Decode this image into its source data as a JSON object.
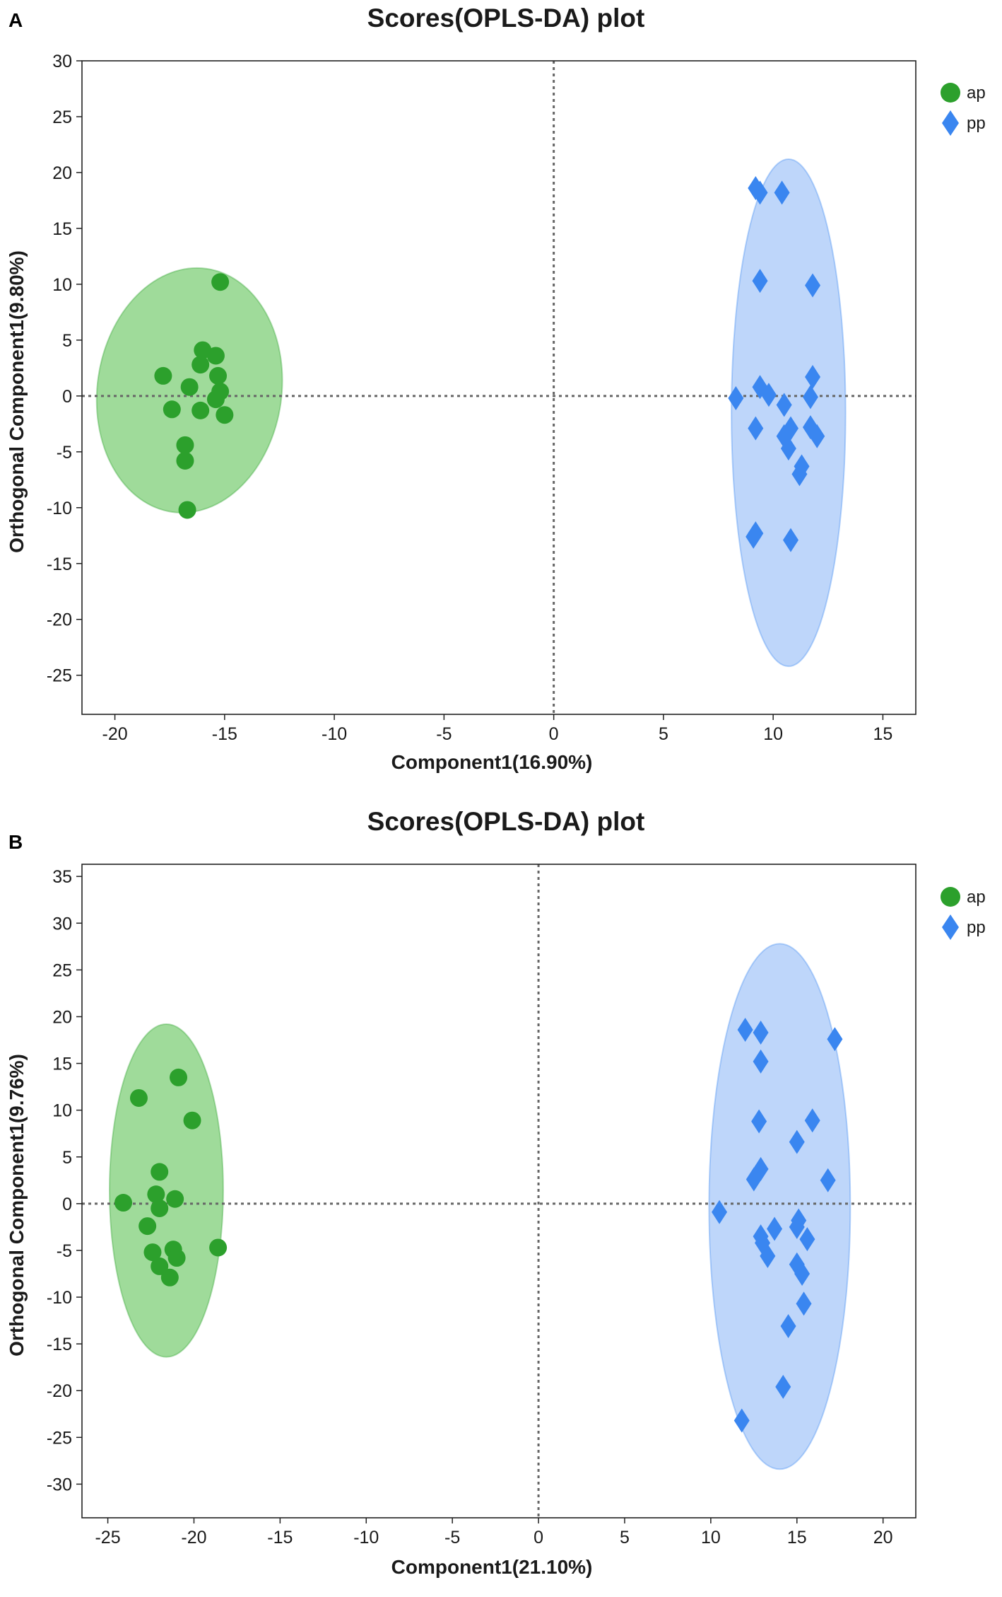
{
  "chart_data": [
    {
      "panel": "A",
      "type": "scatter",
      "title": "Scores(OPLS-DA) plot",
      "xlabel": "Component1(16.90%)",
      "ylabel": "Orthogonal Component1(9.80%)",
      "xlim": [
        -21.5,
        16.5
      ],
      "ylim": [
        -28.5,
        30
      ],
      "xticks": [
        -20,
        -15,
        -10,
        -5,
        0,
        5,
        10,
        15
      ],
      "yticks": [
        30,
        25,
        20,
        15,
        10,
        5,
        0,
        -5,
        -10,
        -15,
        -20,
        -25
      ],
      "reference_lines": {
        "x": 0,
        "y": 0
      },
      "legend": {
        "position": "top-right",
        "entries": [
          "ap",
          "pp"
        ]
      },
      "series": [
        {
          "name": "ap",
          "marker": "circle",
          "color": "#2ca02c",
          "ellipse": {
            "cx": -16.6,
            "cy": 0.5,
            "rx": 4.2,
            "ry": 11.0,
            "rotation_deg": 8,
            "fill": "#7fcf78"
          },
          "points": [
            [
              -15.2,
              10.2
            ],
            [
              -16.0,
              4.1
            ],
            [
              -15.4,
              3.6
            ],
            [
              -16.1,
              2.8
            ],
            [
              -17.8,
              1.8
            ],
            [
              -15.3,
              1.8
            ],
            [
              -16.6,
              0.8
            ],
            [
              -15.2,
              0.4
            ],
            [
              -15.4,
              -0.3
            ],
            [
              -17.4,
              -1.2
            ],
            [
              -16.1,
              -1.3
            ],
            [
              -15.0,
              -1.7
            ],
            [
              -16.8,
              -4.4
            ],
            [
              -16.8,
              -5.8
            ],
            [
              -16.7,
              -10.2
            ]
          ]
        },
        {
          "name": "pp",
          "marker": "diamond",
          "color": "#3a86f0",
          "ellipse": {
            "cx": 10.7,
            "cy": -1.5,
            "rx": 2.6,
            "ry": 22.7,
            "rotation_deg": 0,
            "fill": "#a8c8f8"
          },
          "points": [
            [
              9.2,
              18.6
            ],
            [
              9.4,
              18.2
            ],
            [
              10.4,
              18.2
            ],
            [
              9.4,
              10.3
            ],
            [
              11.8,
              9.9
            ],
            [
              11.8,
              1.7
            ],
            [
              9.4,
              0.8
            ],
            [
              11.7,
              -0.1
            ],
            [
              8.3,
              -0.2
            ],
            [
              9.8,
              0.1
            ],
            [
              10.5,
              -0.8
            ],
            [
              10.8,
              -2.9
            ],
            [
              11.7,
              -2.8
            ],
            [
              9.2,
              -2.9
            ],
            [
              10.5,
              -3.6
            ],
            [
              12.0,
              -3.6
            ],
            [
              10.7,
              -4.7
            ],
            [
              11.3,
              -6.3
            ],
            [
              11.2,
              -7.0
            ],
            [
              9.1,
              -12.6
            ],
            [
              9.2,
              -12.3
            ],
            [
              10.8,
              -12.9
            ]
          ]
        }
      ]
    },
    {
      "panel": "B",
      "type": "scatter",
      "title": "Scores(OPLS-DA) plot",
      "xlabel": "Component1(21.10%)",
      "ylabel": "Orthogonal Component1(9.76%)",
      "xlim": [
        -26.5,
        21.9
      ],
      "ylim": [
        -33.6,
        36.3
      ],
      "xticks": [
        -25,
        -20,
        -15,
        -10,
        -5,
        0,
        5,
        10,
        15,
        20
      ],
      "yticks": [
        35,
        30,
        25,
        20,
        15,
        10,
        5,
        0,
        -5,
        -10,
        -15,
        -20,
        -25,
        -30
      ],
      "reference_lines": {
        "x": 0,
        "y": 0
      },
      "legend": {
        "position": "top-right",
        "entries": [
          "ap",
          "pp"
        ]
      },
      "series": [
        {
          "name": "ap",
          "marker": "circle",
          "color": "#2ca02c",
          "ellipse": {
            "cx": -21.6,
            "cy": 1.4,
            "rx": 3.3,
            "ry": 17.8,
            "rotation_deg": 0,
            "fill": "#7fcf78"
          },
          "points": [
            [
              -20.9,
              13.5
            ],
            [
              -23.2,
              11.3
            ],
            [
              -20.1,
              8.9
            ],
            [
              -22.0,
              3.4
            ],
            [
              -22.2,
              1.0
            ],
            [
              -21.1,
              0.5
            ],
            [
              -24.1,
              0.1
            ],
            [
              -22.0,
              -0.5
            ],
            [
              -22.7,
              -2.4
            ],
            [
              -18.6,
              -4.7
            ],
            [
              -21.2,
              -4.9
            ],
            [
              -22.4,
              -5.2
            ],
            [
              -21.0,
              -5.8
            ],
            [
              -22.0,
              -6.7
            ],
            [
              -21.4,
              -7.9
            ]
          ]
        },
        {
          "name": "pp",
          "marker": "diamond",
          "color": "#3a86f0",
          "ellipse": {
            "cx": 14.0,
            "cy": -0.3,
            "rx": 4.1,
            "ry": 28.1,
            "rotation_deg": 0,
            "fill": "#a8c8f8"
          },
          "points": [
            [
              12.0,
              18.6
            ],
            [
              12.9,
              18.3
            ],
            [
              17.2,
              17.6
            ],
            [
              12.9,
              15.2
            ],
            [
              12.8,
              8.8
            ],
            [
              15.9,
              8.9
            ],
            [
              15.0,
              6.6
            ],
            [
              12.9,
              3.7
            ],
            [
              12.5,
              2.6
            ],
            [
              16.8,
              2.5
            ],
            [
              10.5,
              -0.9
            ],
            [
              15.1,
              -1.8
            ],
            [
              15.0,
              -2.5
            ],
            [
              13.7,
              -2.7
            ],
            [
              12.9,
              -3.5
            ],
            [
              13.0,
              -4.2
            ],
            [
              15.6,
              -3.8
            ],
            [
              13.3,
              -5.6
            ],
            [
              15.0,
              -6.5
            ],
            [
              15.3,
              -7.5
            ],
            [
              15.4,
              -10.7
            ],
            [
              14.5,
              -13.1
            ],
            [
              14.2,
              -19.6
            ],
            [
              11.8,
              -23.2
            ]
          ]
        }
      ]
    }
  ]
}
